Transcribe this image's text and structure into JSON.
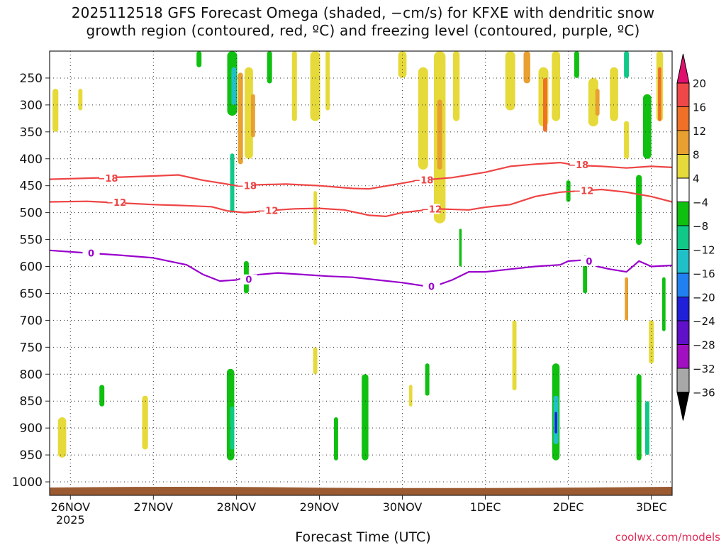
{
  "title": {
    "line1": "2025112518 GFS Forecast Omega (shaded, −cm/s) for KFXE with dendritic snow",
    "line2": "growth region (contoured, red, ºC) and freezing level (contoured, purple, ºC)"
  },
  "xlabel": "Forecast Time (UTC)",
  "credit": "coolwx.com/models",
  "colors": {
    "temp_contour": "#ee4444",
    "freezing_contour": "#9900cc",
    "ground": "#9b5a30",
    "grid": "#333333"
  },
  "chart_data": {
    "type": "heatmap",
    "x_axis": {
      "units": "days since 26NOV 00Z",
      "range": [
        -0.25,
        7.25
      ],
      "ticks": [
        {
          "v": 0,
          "label": "26NOV",
          "sub": "2025"
        },
        {
          "v": 1,
          "label": "27NOV",
          "sub": ""
        },
        {
          "v": 2,
          "label": "28NOV",
          "sub": ""
        },
        {
          "v": 3,
          "label": "29NOV",
          "sub": ""
        },
        {
          "v": 4,
          "label": "30NOV",
          "sub": ""
        },
        {
          "v": 5,
          "label": "1DEC",
          "sub": ""
        },
        {
          "v": 6,
          "label": "2DEC",
          "sub": ""
        },
        {
          "v": 7,
          "label": "3DEC",
          "sub": ""
        }
      ]
    },
    "y_axis": {
      "units": "hPa",
      "range": [
        1025,
        200
      ],
      "ticks": [
        {
          "v": 250,
          "label": "250"
        },
        {
          "v": 300,
          "label": "300"
        },
        {
          "v": 350,
          "label": "350"
        },
        {
          "v": 400,
          "label": "400"
        },
        {
          "v": 450,
          "label": "450"
        },
        {
          "v": 500,
          "label": "500"
        },
        {
          "v": 550,
          "label": "550"
        },
        {
          "v": 600,
          "label": "600"
        },
        {
          "v": 650,
          "label": "650"
        },
        {
          "v": 700,
          "label": "700"
        },
        {
          "v": 750,
          "label": "750"
        },
        {
          "v": 800,
          "label": "800"
        },
        {
          "v": 850,
          "label": "850"
        },
        {
          "v": 900,
          "label": "900"
        },
        {
          "v": 950,
          "label": "950"
        },
        {
          "v": 1000,
          "label": "1000"
        }
      ]
    },
    "colorbar": {
      "labels": [
        "20",
        "16",
        "12",
        "8",
        "4",
        "−4",
        "−8",
        "−12",
        "−16",
        "−20",
        "−24",
        "−28",
        "−32",
        "−36"
      ],
      "bins": [
        {
          "lo": 20,
          "hi": 99,
          "color": "#e0106e"
        },
        {
          "lo": 16,
          "hi": 20,
          "color": "#f04848"
        },
        {
          "lo": 12,
          "hi": 16,
          "color": "#f07028"
        },
        {
          "lo": 8,
          "hi": 12,
          "color": "#e8a030"
        },
        {
          "lo": 4,
          "hi": 8,
          "color": "#e6da3a"
        },
        {
          "lo": -4,
          "hi": 4,
          "color": "#ffffff"
        },
        {
          "lo": -8,
          "hi": -4,
          "color": "#10c010"
        },
        {
          "lo": -12,
          "hi": -8,
          "color": "#10c888"
        },
        {
          "lo": -16,
          "hi": -12,
          "color": "#20c0c8"
        },
        {
          "lo": -20,
          "hi": -16,
          "color": "#2080f0"
        },
        {
          "lo": -24,
          "hi": -20,
          "color": "#2020d8"
        },
        {
          "lo": -28,
          "hi": -24,
          "color": "#6010c8"
        },
        {
          "lo": -32,
          "hi": -28,
          "color": "#a010c0"
        },
        {
          "lo": -36,
          "hi": -32,
          "color": "#a8a8a8"
        },
        {
          "lo": -99,
          "hi": -36,
          "color": "#000000"
        }
      ]
    },
    "contours": [
      {
        "name": "-18C",
        "label": "−18",
        "color": "#ee4444",
        "x": [
          -0.25,
          0.2,
          0.6,
          1.0,
          1.3,
          1.6,
          1.85,
          2.0,
          2.3,
          2.6,
          3.0,
          3.4,
          3.6,
          3.9,
          4.2,
          4.6,
          4.8,
          5.0,
          5.3,
          5.6,
          5.9,
          6.1,
          6.4,
          6.7,
          7.0,
          7.25
        ],
        "y": [
          438,
          436,
          434,
          432,
          430,
          440,
          446,
          450,
          448,
          447,
          450,
          455,
          456,
          448,
          440,
          435,
          430,
          425,
          414,
          410,
          407,
          412,
          414,
          417,
          414,
          416
        ]
      },
      {
        "name": "-12C",
        "label": "−12",
        "color": "#ee4444",
        "x": [
          -0.25,
          0.2,
          0.6,
          1.0,
          1.4,
          1.7,
          1.9,
          2.1,
          2.4,
          2.7,
          3.0,
          3.3,
          3.6,
          3.8,
          4.0,
          4.4,
          4.8,
          5.0,
          5.3,
          5.6,
          5.9,
          6.1,
          6.4,
          6.7,
          7.0,
          7.25
        ],
        "y": [
          480,
          479,
          482,
          485,
          487,
          489,
          497,
          500,
          496,
          493,
          492,
          495,
          505,
          507,
          500,
          493,
          495,
          490,
          485,
          470,
          462,
          460,
          457,
          462,
          470,
          480
        ]
      },
      {
        "name": "0C",
        "label": "0",
        "color": "#9900cc",
        "x": [
          -0.25,
          0.2,
          0.6,
          1.0,
          1.4,
          1.6,
          1.8,
          2.0,
          2.2,
          2.5,
          2.8,
          3.1,
          3.4,
          3.7,
          4.0,
          4.3,
          4.4,
          4.6,
          4.8,
          5.0,
          5.3,
          5.6,
          5.9,
          6.0,
          6.2,
          6.35,
          6.5,
          6.7,
          6.85,
          7.0,
          7.25
        ],
        "y": [
          570,
          575,
          579,
          584,
          597,
          615,
          627,
          625,
          616,
          612,
          615,
          618,
          620,
          625,
          630,
          637,
          636,
          625,
          610,
          610,
          605,
          600,
          597,
          590,
          588,
          600,
          605,
          610,
          590,
          600,
          598
        ]
      }
    ],
    "contour_labels": [
      {
        "text": "−18",
        "x": 0.45,
        "y": 436
      },
      {
        "text": "−18",
        "x": 2.12,
        "y": 450
      },
      {
        "text": "−18",
        "x": 4.25,
        "y": 439
      },
      {
        "text": "−18",
        "x": 6.12,
        "y": 411
      },
      {
        "text": "−12",
        "x": 0.55,
        "y": 481
      },
      {
        "text": "−12",
        "x": 2.38,
        "y": 496
      },
      {
        "text": "−12",
        "x": 4.35,
        "y": 493
      },
      {
        "text": "−12",
        "x": 6.18,
        "y": 459
      },
      {
        "text": "0",
        "x": 0.25,
        "y": 575
      },
      {
        "text": "0",
        "x": 2.15,
        "y": 624
      },
      {
        "text": "0",
        "x": 4.35,
        "y": 637
      },
      {
        "text": "0",
        "x": 6.25,
        "y": 590
      }
    ],
    "omega_blobs": [
      {
        "x": -0.18,
        "p": [
          270,
          350
        ],
        "w": 0.07,
        "value": 5
      },
      {
        "x": -0.1,
        "p": [
          880,
          955
        ],
        "w": 0.1,
        "value": 5
      },
      {
        "x": 0.12,
        "p": [
          270,
          310
        ],
        "w": 0.05,
        "value": 5
      },
      {
        "x": 0.38,
        "p": [
          820,
          860
        ],
        "w": 0.06,
        "value": -6
      },
      {
        "x": 0.9,
        "p": [
          840,
          940
        ],
        "w": 0.07,
        "value": 5
      },
      {
        "x": 1.55,
        "p": [
          200,
          230
        ],
        "w": 0.06,
        "value": -6
      },
      {
        "x": 1.95,
        "p": [
          200,
          320
        ],
        "w": 0.12,
        "value": -7
      },
      {
        "x": 1.97,
        "p": [
          230,
          300
        ],
        "w": 0.06,
        "value": -13
      },
      {
        "x": 2.05,
        "p": [
          240,
          410
        ],
        "w": 0.06,
        "value": 9
      },
      {
        "x": 1.95,
        "p": [
          390,
          500
        ],
        "w": 0.05,
        "value": -9
      },
      {
        "x": 2.15,
        "p": [
          230,
          400
        ],
        "w": 0.1,
        "value": 5
      },
      {
        "x": 2.2,
        "p": [
          280,
          360
        ],
        "w": 0.05,
        "value": 9
      },
      {
        "x": 1.93,
        "p": [
          790,
          960
        ],
        "w": 0.09,
        "value": -7
      },
      {
        "x": 1.95,
        "p": [
          860,
          940
        ],
        "w": 0.05,
        "value": -11
      },
      {
        "x": 2.12,
        "p": [
          590,
          650
        ],
        "w": 0.06,
        "value": -7
      },
      {
        "x": 2.4,
        "p": [
          200,
          260
        ],
        "w": 0.06,
        "value": -6
      },
      {
        "x": 2.7,
        "p": [
          200,
          330
        ],
        "w": 0.06,
        "value": 5
      },
      {
        "x": 2.95,
        "p": [
          200,
          330
        ],
        "w": 0.12,
        "value": 5
      },
      {
        "x": 2.95,
        "p": [
          460,
          560
        ],
        "w": 0.04,
        "value": 5
      },
      {
        "x": 3.1,
        "p": [
          200,
          310
        ],
        "w": 0.05,
        "value": 5
      },
      {
        "x": 3.55,
        "p": [
          800,
          960
        ],
        "w": 0.08,
        "value": -7
      },
      {
        "x": 3.2,
        "p": [
          880,
          960
        ],
        "w": 0.05,
        "value": -6
      },
      {
        "x": 2.95,
        "p": [
          750,
          800
        ],
        "w": 0.05,
        "value": 5
      },
      {
        "x": 4.0,
        "p": [
          200,
          250
        ],
        "w": 0.1,
        "value": 5
      },
      {
        "x": 4.25,
        "p": [
          230,
          420
        ],
        "w": 0.12,
        "value": 5
      },
      {
        "x": 4.45,
        "p": [
          200,
          520
        ],
        "w": 0.14,
        "value": 5
      },
      {
        "x": 4.45,
        "p": [
          290,
          420
        ],
        "w": 0.06,
        "value": 9
      },
      {
        "x": 4.65,
        "p": [
          200,
          330
        ],
        "w": 0.08,
        "value": 5
      },
      {
        "x": 4.1,
        "p": [
          820,
          860
        ],
        "w": 0.04,
        "value": 5
      },
      {
        "x": 4.3,
        "p": [
          780,
          840
        ],
        "w": 0.05,
        "value": -6
      },
      {
        "x": 4.7,
        "p": [
          530,
          600
        ],
        "w": 0.03,
        "value": -6
      },
      {
        "x": 5.3,
        "p": [
          200,
          310
        ],
        "w": 0.12,
        "value": 5
      },
      {
        "x": 5.35,
        "p": [
          700,
          830
        ],
        "w": 0.05,
        "value": 5
      },
      {
        "x": 5.5,
        "p": [
          200,
          260
        ],
        "w": 0.08,
        "value": 9
      },
      {
        "x": 5.7,
        "p": [
          230,
          340
        ],
        "w": 0.12,
        "value": 5
      },
      {
        "x": 5.72,
        "p": [
          250,
          350
        ],
        "w": 0.05,
        "value": 13
      },
      {
        "x": 5.85,
        "p": [
          200,
          330
        ],
        "w": 0.1,
        "value": 5
      },
      {
        "x": 5.85,
        "p": [
          780,
          960
        ],
        "w": 0.09,
        "value": -7
      },
      {
        "x": 5.85,
        "p": [
          840,
          930
        ],
        "w": 0.06,
        "value": -14
      },
      {
        "x": 5.85,
        "p": [
          870,
          910
        ],
        "w": 0.03,
        "value": -22
      },
      {
        "x": 6.1,
        "p": [
          200,
          250
        ],
        "w": 0.06,
        "value": -6
      },
      {
        "x": 6.3,
        "p": [
          250,
          340
        ],
        "w": 0.12,
        "value": 5
      },
      {
        "x": 6.35,
        "p": [
          270,
          320
        ],
        "w": 0.05,
        "value": 9
      },
      {
        "x": 6.55,
        "p": [
          230,
          330
        ],
        "w": 0.1,
        "value": 5
      },
      {
        "x": 6.2,
        "p": [
          580,
          650
        ],
        "w": 0.05,
        "value": -7
      },
      {
        "x": 6.0,
        "p": [
          440,
          480
        ],
        "w": 0.05,
        "value": -6
      },
      {
        "x": 6.7,
        "p": [
          200,
          250
        ],
        "w": 0.06,
        "value": -9
      },
      {
        "x": 6.7,
        "p": [
          330,
          400
        ],
        "w": 0.06,
        "value": 5
      },
      {
        "x": 6.85,
        "p": [
          430,
          560
        ],
        "w": 0.07,
        "value": -7
      },
      {
        "x": 6.95,
        "p": [
          280,
          400
        ],
        "w": 0.1,
        "value": -7
      },
      {
        "x": 7.1,
        "p": [
          200,
          330
        ],
        "w": 0.08,
        "value": 5
      },
      {
        "x": 7.1,
        "p": [
          230,
          330
        ],
        "w": 0.04,
        "value": 13
      },
      {
        "x": 6.7,
        "p": [
          620,
          700
        ],
        "w": 0.04,
        "value": 9
      },
      {
        "x": 6.85,
        "p": [
          800,
          960
        ],
        "w": 0.06,
        "value": -7
      },
      {
        "x": 6.95,
        "p": [
          850,
          950
        ],
        "w": 0.05,
        "value": -11
      },
      {
        "x": 7.0,
        "p": [
          700,
          780
        ],
        "w": 0.06,
        "value": 5
      },
      {
        "x": 7.15,
        "p": [
          620,
          720
        ],
        "w": 0.04,
        "value": -7
      }
    ]
  }
}
